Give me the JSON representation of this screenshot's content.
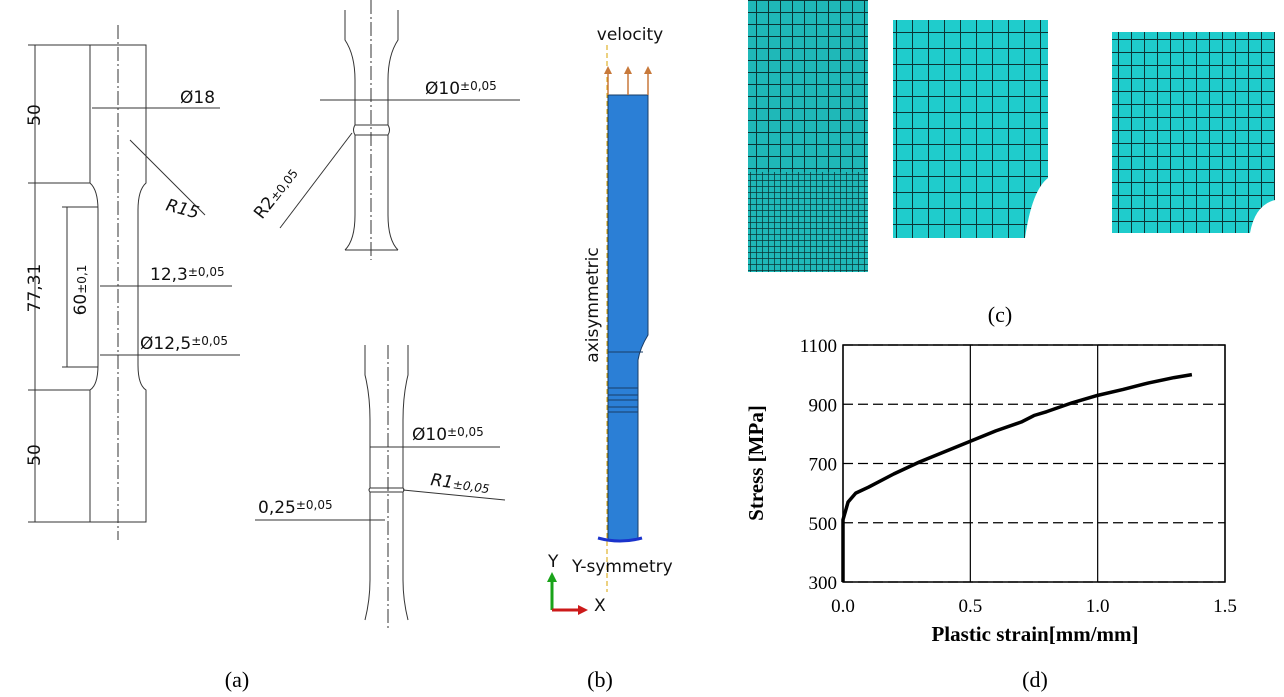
{
  "panel_a": {
    "caption": "(a)",
    "dimensions": [
      {
        "text": "50"
      },
      {
        "text": "77,31"
      },
      {
        "text": "50"
      },
      {
        "text": "Ø18"
      },
      {
        "text": "R15"
      },
      {
        "text": "60",
        "tolerance": "±0,1"
      },
      {
        "text": "12,3",
        "tolerance": "±0,05"
      },
      {
        "text": "Ø12,5",
        "tolerance": "±0,05"
      },
      {
        "text": "Ø10",
        "tolerance": "±0,05"
      },
      {
        "text": "R2",
        "tolerance": "±0,05"
      },
      {
        "text": "Ø10",
        "tolerance": "±0,05"
      },
      {
        "text": "R1",
        "tolerance": "±0,05"
      },
      {
        "text": "0,25",
        "tolerance": "±0,05"
      }
    ]
  },
  "panel_b": {
    "caption": "(b)",
    "top_label": "velocity",
    "side_label": "axisymmetric",
    "bottom_label": "Y-symmetry",
    "axis_y": "Y",
    "axis_x": "X"
  },
  "panel_c": {
    "caption": "(c)"
  },
  "chart_data": {
    "type": "line",
    "caption": "(d)",
    "x_label": "Plastic strain[mm/mm]",
    "y_label": "Stress [MPa]",
    "x": [
      0,
      0,
      0.02,
      0.05,
      0.1,
      0.2,
      0.3,
      0.4,
      0.5,
      0.6,
      0.7,
      0.75,
      0.8,
      0.9,
      1.0,
      1.1,
      1.2,
      1.3,
      1.37
    ],
    "values": [
      300,
      510,
      570,
      600,
      620,
      665,
      705,
      740,
      775,
      810,
      840,
      862,
      875,
      905,
      930,
      950,
      972,
      990,
      1000
    ],
    "color": "#000000",
    "xlim": [
      0,
      1.5
    ],
    "xticks": [
      {
        "value": 0,
        "label": "0.0"
      },
      0.5,
      {
        "value": 1,
        "label": "1.0"
      },
      1.5
    ],
    "ylim": [
      300,
      1100
    ],
    "yticks": [
      300,
      500,
      700,
      900,
      1100
    ],
    "grid": true,
    "x_grid_style": "solid",
    "y_grid_style": "dashed"
  }
}
